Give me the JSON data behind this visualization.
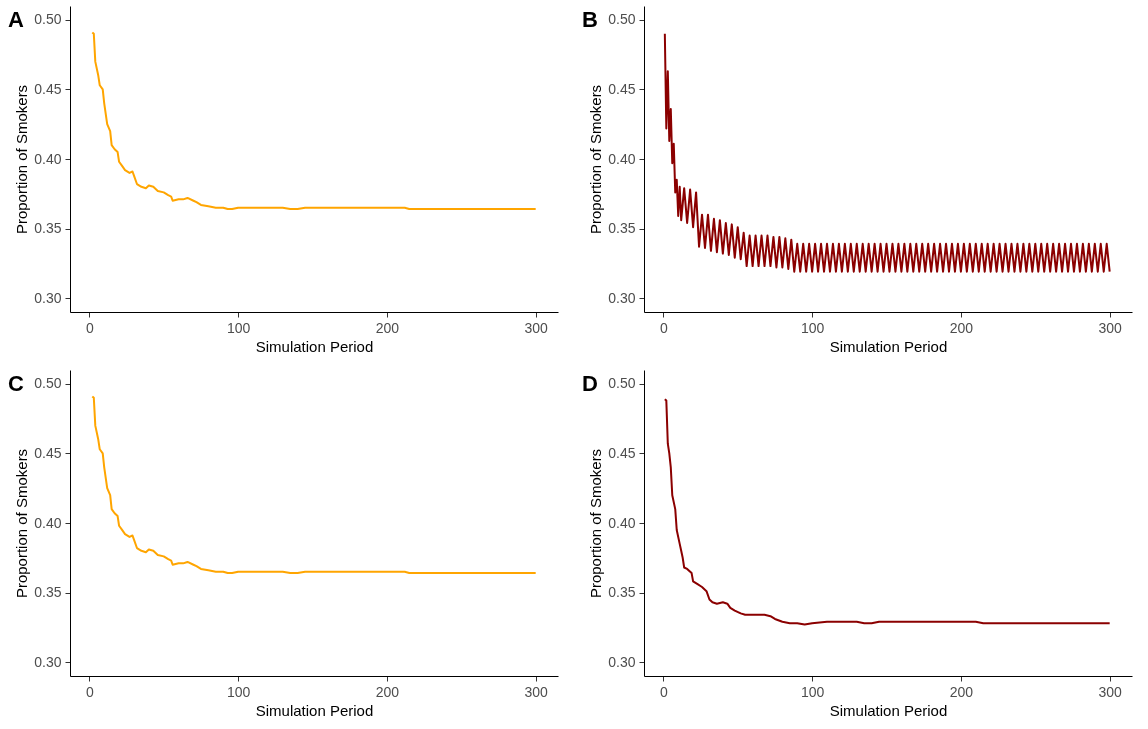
{
  "chart_data": [
    {
      "type": "line",
      "title": "A",
      "xlabel": "Simulation Period",
      "ylabel": "Proportion of Smokers",
      "color": "#ffa500",
      "xlim": [
        -13,
        315
      ],
      "ylim": [
        0.29,
        0.51
      ],
      "xticks": [
        0,
        100,
        200,
        300
      ],
      "yticks": [
        {
          "value": 0.3,
          "label": "0.30"
        },
        {
          "value": 0.35,
          "label": "0.35"
        },
        {
          "value": 0.4,
          "label": "0.40"
        },
        {
          "value": 0.45,
          "label": "0.45"
        },
        {
          "value": 0.5,
          "label": "0.50"
        }
      ],
      "x": [
        2,
        3,
        4,
        6,
        7,
        9,
        10,
        12,
        14,
        15,
        17,
        19,
        20,
        22,
        24,
        27,
        29,
        30,
        32,
        35,
        38,
        40,
        43,
        46,
        50,
        53,
        55,
        56,
        60,
        63,
        66,
        70,
        72,
        75,
        80,
        85,
        90,
        93,
        96,
        100,
        110,
        120,
        130,
        135,
        140,
        145,
        160,
        180,
        200,
        212,
        215,
        240,
        270,
        300
      ],
      "values": [
        0.491,
        0.49,
        0.47,
        0.46,
        0.453,
        0.45,
        0.44,
        0.425,
        0.42,
        0.41,
        0.407,
        0.405,
        0.398,
        0.395,
        0.392,
        0.39,
        0.391,
        0.388,
        0.382,
        0.38,
        0.379,
        0.381,
        0.38,
        0.377,
        0.376,
        0.374,
        0.373,
        0.37,
        0.371,
        0.371,
        0.372,
        0.37,
        0.369,
        0.367,
        0.366,
        0.365,
        0.365,
        0.364,
        0.364,
        0.365,
        0.365,
        0.365,
        0.365,
        0.364,
        0.364,
        0.365,
        0.365,
        0.365,
        0.365,
        0.365,
        0.364,
        0.364,
        0.364,
        0.364
      ]
    },
    {
      "type": "line",
      "title": "B",
      "xlabel": "Simulation Period",
      "ylabel": "Proportion of Smokers",
      "color": "#8b0000",
      "xlim": [
        -13,
        315
      ],
      "ylim": [
        0.29,
        0.51
      ],
      "xticks": [
        0,
        100,
        200,
        300
      ],
      "yticks": [
        {
          "value": 0.3,
          "label": "0.30"
        },
        {
          "value": 0.35,
          "label": "0.35"
        },
        {
          "value": 0.4,
          "label": "0.40"
        },
        {
          "value": 0.45,
          "label": "0.45"
        },
        {
          "value": 0.5,
          "label": "0.50"
        }
      ],
      "x": [
        1,
        2,
        3,
        4,
        5,
        6,
        7,
        8,
        9,
        10,
        11,
        12,
        14,
        16,
        18,
        20,
        22,
        24,
        26,
        28,
        30,
        32,
        34,
        36,
        38,
        40,
        42,
        44,
        46,
        48,
        50,
        52,
        54,
        56,
        58,
        60,
        62,
        64,
        66,
        68,
        70,
        72,
        74,
        76,
        78,
        80,
        82,
        84,
        86,
        88,
        90,
        92,
        94,
        96,
        98,
        100,
        102,
        104,
        106,
        108,
        110,
        112,
        114,
        116,
        118,
        120,
        122,
        124,
        126,
        128,
        130,
        132,
        134,
        136,
        138,
        140,
        142,
        144,
        146,
        148,
        150,
        152,
        154,
        156,
        158,
        160,
        162,
        164,
        166,
        168,
        170,
        172,
        174,
        176,
        178,
        180,
        182,
        184,
        186,
        188,
        190,
        192,
        194,
        196,
        198,
        200,
        202,
        204,
        206,
        208,
        210,
        212,
        214,
        216,
        218,
        220,
        222,
        224,
        226,
        228,
        230,
        232,
        234,
        236,
        238,
        240,
        242,
        244,
        246,
        248,
        250,
        252,
        254,
        256,
        258,
        260,
        262,
        264,
        266,
        268,
        270,
        272,
        274,
        276,
        278,
        280,
        282,
        284,
        286,
        288,
        290,
        292,
        294,
        296,
        298,
        300
      ],
      "values": [
        0.49,
        0.422,
        0.463,
        0.413,
        0.436,
        0.397,
        0.411,
        0.376,
        0.385,
        0.359,
        0.38,
        0.356,
        0.379,
        0.354,
        0.378,
        0.351,
        0.376,
        0.337,
        0.36,
        0.336,
        0.36,
        0.334,
        0.357,
        0.333,
        0.356,
        0.332,
        0.354,
        0.331,
        0.353,
        0.329,
        0.351,
        0.328,
        0.347,
        0.323,
        0.345,
        0.323,
        0.345,
        0.323,
        0.345,
        0.323,
        0.345,
        0.323,
        0.344,
        0.322,
        0.344,
        0.322,
        0.343,
        0.321,
        0.342,
        0.319,
        0.339,
        0.319,
        0.339,
        0.319,
        0.339,
        0.319,
        0.339,
        0.319,
        0.339,
        0.319,
        0.339,
        0.319,
        0.339,
        0.319,
        0.339,
        0.319,
        0.339,
        0.319,
        0.339,
        0.319,
        0.339,
        0.319,
        0.339,
        0.319,
        0.339,
        0.319,
        0.339,
        0.319,
        0.339,
        0.319,
        0.339,
        0.319,
        0.339,
        0.319,
        0.339,
        0.319,
        0.339,
        0.319,
        0.339,
        0.319,
        0.339,
        0.319,
        0.339,
        0.319,
        0.339,
        0.319,
        0.339,
        0.319,
        0.339,
        0.319,
        0.339,
        0.319,
        0.339,
        0.319,
        0.339,
        0.319,
        0.339,
        0.319,
        0.339,
        0.319,
        0.339,
        0.319,
        0.339,
        0.319,
        0.339,
        0.319,
        0.339,
        0.319,
        0.339,
        0.319,
        0.339,
        0.319,
        0.339,
        0.319,
        0.339,
        0.319,
        0.339,
        0.319,
        0.339,
        0.319,
        0.339,
        0.319,
        0.339,
        0.319,
        0.339,
        0.319,
        0.339,
        0.319,
        0.339,
        0.319,
        0.339,
        0.319,
        0.339,
        0.319,
        0.339,
        0.319,
        0.339,
        0.319,
        0.339,
        0.319,
        0.339,
        0.319,
        0.339,
        0.319,
        0.339,
        0.319
      ]
    },
    {
      "type": "line",
      "title": "C",
      "xlabel": "Simulation Period",
      "ylabel": "Proportion of Smokers",
      "color": "#ffa500",
      "xlim": [
        -13,
        315
      ],
      "ylim": [
        0.29,
        0.51
      ],
      "xticks": [
        0,
        100,
        200,
        300
      ],
      "yticks": [
        {
          "value": 0.3,
          "label": "0.30"
        },
        {
          "value": 0.35,
          "label": "0.35"
        },
        {
          "value": 0.4,
          "label": "0.40"
        },
        {
          "value": 0.45,
          "label": "0.45"
        },
        {
          "value": 0.5,
          "label": "0.50"
        }
      ],
      "x": [
        2,
        3,
        4,
        6,
        7,
        9,
        10,
        12,
        14,
        15,
        17,
        19,
        20,
        22,
        24,
        27,
        29,
        30,
        32,
        35,
        38,
        40,
        43,
        46,
        50,
        53,
        55,
        56,
        60,
        63,
        66,
        70,
        72,
        75,
        80,
        85,
        90,
        93,
        96,
        100,
        110,
        120,
        130,
        135,
        140,
        145,
        160,
        180,
        200,
        212,
        215,
        240,
        270,
        300
      ],
      "values": [
        0.491,
        0.49,
        0.47,
        0.46,
        0.453,
        0.45,
        0.44,
        0.425,
        0.42,
        0.41,
        0.407,
        0.405,
        0.398,
        0.395,
        0.392,
        0.39,
        0.391,
        0.388,
        0.382,
        0.38,
        0.379,
        0.381,
        0.38,
        0.377,
        0.376,
        0.374,
        0.373,
        0.37,
        0.371,
        0.371,
        0.372,
        0.37,
        0.369,
        0.367,
        0.366,
        0.365,
        0.365,
        0.364,
        0.364,
        0.365,
        0.365,
        0.365,
        0.365,
        0.364,
        0.364,
        0.365,
        0.365,
        0.365,
        0.365,
        0.365,
        0.364,
        0.364,
        0.364,
        0.364
      ]
    },
    {
      "type": "line",
      "title": "D",
      "xlabel": "Simulation Period",
      "ylabel": "Proportion of Smokers",
      "color": "#8b0000",
      "xlim": [
        -13,
        315
      ],
      "ylim": [
        0.29,
        0.51
      ],
      "xticks": [
        0,
        100,
        200,
        300
      ],
      "yticks": [
        {
          "value": 0.3,
          "label": "0.30"
        },
        {
          "value": 0.35,
          "label": "0.35"
        },
        {
          "value": 0.4,
          "label": "0.40"
        },
        {
          "value": 0.45,
          "label": "0.45"
        },
        {
          "value": 0.5,
          "label": "0.50"
        }
      ],
      "x": [
        1,
        2,
        3,
        4,
        5,
        6,
        8,
        9,
        11,
        12,
        13,
        14,
        16,
        19,
        20,
        23,
        26,
        29,
        31,
        33,
        36,
        40,
        43,
        45,
        48,
        52,
        55,
        60,
        68,
        72,
        75,
        80,
        85,
        90,
        95,
        100,
        110,
        130,
        135,
        140,
        145,
        180,
        210,
        215,
        250,
        300
      ],
      "values": [
        0.489,
        0.488,
        0.457,
        0.45,
        0.44,
        0.42,
        0.41,
        0.395,
        0.385,
        0.38,
        0.375,
        0.368,
        0.367,
        0.364,
        0.358,
        0.356,
        0.354,
        0.351,
        0.345,
        0.343,
        0.342,
        0.343,
        0.342,
        0.339,
        0.337,
        0.335,
        0.334,
        0.334,
        0.334,
        0.333,
        0.331,
        0.329,
        0.328,
        0.328,
        0.327,
        0.328,
        0.329,
        0.329,
        0.328,
        0.328,
        0.329,
        0.329,
        0.329,
        0.328,
        0.328,
        0.328
      ]
    }
  ]
}
